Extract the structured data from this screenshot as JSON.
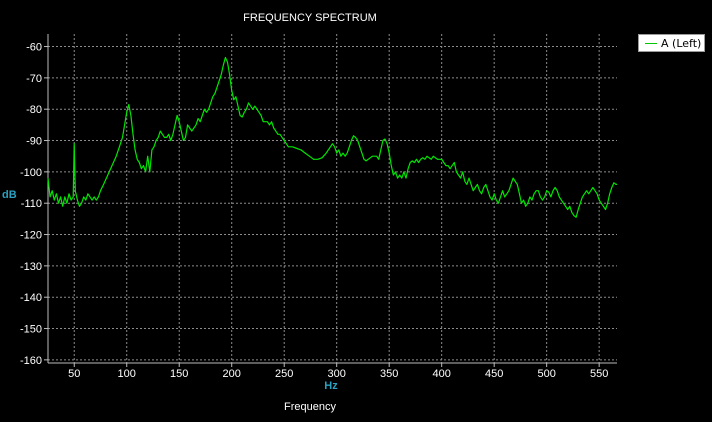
{
  "chart_data": {
    "type": "line",
    "title": "FREQUENCY SPECTRUM",
    "xlabel": "Frequency",
    "xunit": "Hz",
    "ylabel": "dB",
    "xlim": [
      25,
      567
    ],
    "ylim": [
      -161,
      -56
    ],
    "xticks": [
      50,
      100,
      150,
      200,
      250,
      300,
      350,
      400,
      450,
      500,
      550
    ],
    "yticks": [
      -60,
      -70,
      -80,
      -90,
      -100,
      -110,
      -120,
      -130,
      -140,
      -150,
      -160
    ],
    "grid": true,
    "legend_position": "top-right",
    "series": [
      {
        "name": "A (Left)",
        "color": "#00e600",
        "points": [
          [
            25,
            -102
          ],
          [
            27,
            -108
          ],
          [
            29,
            -106
          ],
          [
            31,
            -109
          ],
          [
            33,
            -107
          ],
          [
            35,
            -110
          ],
          [
            37,
            -108
          ],
          [
            39,
            -111
          ],
          [
            41,
            -108
          ],
          [
            43,
            -110
          ],
          [
            45,
            -107
          ],
          [
            47,
            -109
          ],
          [
            49,
            -108
          ],
          [
            50,
            -91
          ],
          [
            51,
            -106
          ],
          [
            53,
            -109
          ],
          [
            55,
            -111
          ],
          [
            57,
            -110
          ],
          [
            59,
            -108
          ],
          [
            61,
            -109
          ],
          [
            63,
            -107
          ],
          [
            65,
            -108
          ],
          [
            67,
            -109
          ],
          [
            69,
            -108
          ],
          [
            71,
            -109
          ],
          [
            73,
            -108
          ],
          [
            75,
            -106
          ],
          [
            78,
            -104
          ],
          [
            82,
            -101
          ],
          [
            86,
            -98
          ],
          [
            90,
            -95
          ],
          [
            93,
            -92
          ],
          [
            96,
            -89
          ],
          [
            98,
            -85
          ],
          [
            100,
            -81
          ],
          [
            102,
            -78.5
          ],
          [
            104,
            -82
          ],
          [
            106,
            -88
          ],
          [
            108,
            -93
          ],
          [
            110,
            -96
          ],
          [
            112,
            -97
          ],
          [
            114,
            -99
          ],
          [
            116,
            -98
          ],
          [
            118,
            -100
          ],
          [
            120,
            -95
          ],
          [
            122,
            -100
          ],
          [
            124,
            -93
          ],
          [
            126,
            -92
          ],
          [
            128,
            -90
          ],
          [
            130,
            -89
          ],
          [
            132,
            -87
          ],
          [
            134,
            -88
          ],
          [
            136,
            -89
          ],
          [
            138,
            -89
          ],
          [
            140,
            -88
          ],
          [
            142,
            -90
          ],
          [
            144,
            -88
          ],
          [
            146,
            -85
          ],
          [
            148,
            -82
          ],
          [
            150,
            -84
          ],
          [
            152,
            -87
          ],
          [
            154,
            -90
          ],
          [
            156,
            -89
          ],
          [
            158,
            -85
          ],
          [
            160,
            -86
          ],
          [
            162,
            -87
          ],
          [
            164,
            -86
          ],
          [
            166,
            -85
          ],
          [
            168,
            -83
          ],
          [
            170,
            -84
          ],
          [
            172,
            -82
          ],
          [
            174,
            -80
          ],
          [
            176,
            -81
          ],
          [
            178,
            -80
          ],
          [
            180,
            -78
          ],
          [
            182,
            -76
          ],
          [
            184,
            -75
          ],
          [
            186,
            -73
          ],
          [
            188,
            -71
          ],
          [
            190,
            -69
          ],
          [
            192,
            -66
          ],
          [
            194,
            -63.5
          ],
          [
            196,
            -65
          ],
          [
            198,
            -69
          ],
          [
            200,
            -74
          ],
          [
            202,
            -77
          ],
          [
            204,
            -76
          ],
          [
            206,
            -79
          ],
          [
            208,
            -82
          ],
          [
            210,
            -82.5
          ],
          [
            212,
            -81
          ],
          [
            214,
            -80
          ],
          [
            216,
            -78
          ],
          [
            218,
            -79
          ],
          [
            220,
            -80
          ],
          [
            222,
            -79
          ],
          [
            224,
            -80
          ],
          [
            226,
            -81
          ],
          [
            228,
            -82
          ],
          [
            230,
            -84
          ],
          [
            232,
            -84
          ],
          [
            234,
            -84
          ],
          [
            236,
            -85
          ],
          [
            238,
            -84
          ],
          [
            240,
            -86
          ],
          [
            242,
            -87
          ],
          [
            244,
            -88
          ],
          [
            246,
            -88
          ],
          [
            248,
            -89
          ],
          [
            250,
            -90
          ],
          [
            254,
            -92
          ],
          [
            258,
            -92
          ],
          [
            262,
            -92.5
          ],
          [
            266,
            -93
          ],
          [
            270,
            -94
          ],
          [
            274,
            -95
          ],
          [
            278,
            -96
          ],
          [
            282,
            -96
          ],
          [
            286,
            -95.5
          ],
          [
            290,
            -94
          ],
          [
            294,
            -92
          ],
          [
            296,
            -91
          ],
          [
            298,
            -92
          ],
          [
            300,
            -94
          ],
          [
            302,
            -93
          ],
          [
            304,
            -95
          ],
          [
            306,
            -94
          ],
          [
            308,
            -95
          ],
          [
            310,
            -94
          ],
          [
            312,
            -92
          ],
          [
            314,
            -90
          ],
          [
            316,
            -88.5
          ],
          [
            318,
            -89
          ],
          [
            320,
            -90
          ],
          [
            322,
            -92
          ],
          [
            324,
            -94
          ],
          [
            326,
            -96
          ],
          [
            328,
            -96.5
          ],
          [
            330,
            -96
          ],
          [
            334,
            -95
          ],
          [
            338,
            -95
          ],
          [
            340,
            -96
          ],
          [
            342,
            -93
          ],
          [
            344,
            -90
          ],
          [
            346,
            -89.5
          ],
          [
            348,
            -91
          ],
          [
            350,
            -94
          ],
          [
            352,
            -98
          ],
          [
            354,
            -101
          ],
          [
            356,
            -100
          ],
          [
            358,
            -102
          ],
          [
            360,
            -101
          ],
          [
            362,
            -102
          ],
          [
            364,
            -100
          ],
          [
            366,
            -102
          ],
          [
            368,
            -99
          ],
          [
            370,
            -97
          ],
          [
            372,
            -96.5
          ],
          [
            374,
            -97
          ],
          [
            376,
            -96
          ],
          [
            378,
            -97
          ],
          [
            380,
            -96
          ],
          [
            382,
            -95.5
          ],
          [
            384,
            -96
          ],
          [
            386,
            -95
          ],
          [
            388,
            -95.5
          ],
          [
            390,
            -96
          ],
          [
            392,
            -95
          ],
          [
            394,
            -95.5
          ],
          [
            396,
            -96
          ],
          [
            398,
            -96
          ],
          [
            400,
            -96
          ],
          [
            402,
            -97
          ],
          [
            404,
            -98
          ],
          [
            406,
            -98
          ],
          [
            408,
            -99
          ],
          [
            410,
            -98
          ],
          [
            412,
            -97
          ],
          [
            414,
            -100
          ],
          [
            416,
            -101
          ],
          [
            418,
            -102
          ],
          [
            420,
            -100
          ],
          [
            422,
            -103
          ],
          [
            424,
            -104
          ],
          [
            426,
            -102
          ],
          [
            428,
            -104
          ],
          [
            430,
            -106
          ],
          [
            432,
            -105
          ],
          [
            434,
            -104
          ],
          [
            436,
            -106
          ],
          [
            438,
            -107
          ],
          [
            440,
            -105
          ],
          [
            442,
            -104
          ],
          [
            444,
            -106
          ],
          [
            446,
            -108
          ],
          [
            448,
            -109
          ],
          [
            450,
            -107
          ],
          [
            452,
            -109
          ],
          [
            454,
            -110
          ],
          [
            456,
            -108
          ],
          [
            458,
            -106
          ],
          [
            460,
            -108
          ],
          [
            462,
            -107
          ],
          [
            464,
            -106
          ],
          [
            466,
            -104
          ],
          [
            468,
            -102
          ],
          [
            470,
            -103
          ],
          [
            472,
            -104
          ],
          [
            474,
            -107
          ],
          [
            476,
            -110
          ],
          [
            478,
            -109
          ],
          [
            480,
            -111
          ],
          [
            482,
            -110
          ],
          [
            484,
            -108
          ],
          [
            486,
            -109
          ],
          [
            488,
            -107
          ],
          [
            490,
            -106
          ],
          [
            492,
            -106
          ],
          [
            494,
            -108
          ],
          [
            496,
            -109
          ],
          [
            498,
            -108
          ],
          [
            500,
            -106
          ],
          [
            502,
            -106.5
          ],
          [
            504,
            -108
          ],
          [
            506,
            -106
          ],
          [
            508,
            -105
          ],
          [
            510,
            -106
          ],
          [
            512,
            -108
          ],
          [
            514,
            -109
          ],
          [
            516,
            -110
          ],
          [
            518,
            -111
          ],
          [
            520,
            -112
          ],
          [
            522,
            -111
          ],
          [
            524,
            -113
          ],
          [
            526,
            -114
          ],
          [
            528,
            -114.5
          ],
          [
            530,
            -112
          ],
          [
            532,
            -110
          ],
          [
            534,
            -108
          ],
          [
            536,
            -107
          ],
          [
            538,
            -106
          ],
          [
            540,
            -107
          ],
          [
            542,
            -106
          ],
          [
            544,
            -105
          ],
          [
            546,
            -106
          ],
          [
            548,
            -107
          ],
          [
            550,
            -109
          ],
          [
            552,
            -110
          ],
          [
            554,
            -111
          ],
          [
            556,
            -112
          ],
          [
            558,
            -110
          ],
          [
            560,
            -107
          ],
          [
            562,
            -105
          ],
          [
            564,
            -103.5
          ],
          [
            566,
            -104
          ],
          [
            567,
            -104
          ]
        ]
      }
    ]
  }
}
